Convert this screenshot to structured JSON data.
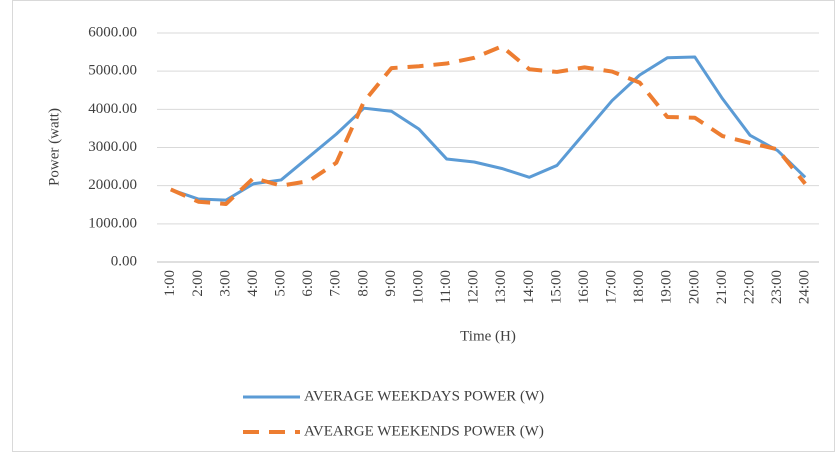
{
  "chart_data": {
    "type": "line",
    "x_label": "Time (H)",
    "y_label": "Power (watt)",
    "categories": [
      "1:00",
      "2:00",
      "3:00",
      "4:00",
      "5:00",
      "6:00",
      "7:00",
      "8:00",
      "9:00",
      "10:00",
      "11:00",
      "12:00",
      "13:00",
      "14:00",
      "15:00",
      "16:00",
      "17:00",
      "18:00",
      "19:00",
      "20:00",
      "21:00",
      "22:00",
      "23:00",
      "24:00"
    ],
    "series": [
      {
        "name": "AVERAGE WEEKDAYS POWER (W)",
        "color": "#5b9bd5",
        "dashed": false,
        "values": [
          1900,
          1650,
          1620,
          2050,
          2150,
          2750,
          3350,
          4030,
          3950,
          3480,
          2700,
          2620,
          2450,
          2220,
          2530,
          3380,
          4230,
          4900,
          5350,
          5370,
          4280,
          3320,
          2920,
          2220
        ]
      },
      {
        "name": "AVEARGE WEEKENDS POWER (W)",
        "color": "#ed7d31",
        "dashed": true,
        "values": [
          1900,
          1580,
          1520,
          2200,
          2000,
          2120,
          2600,
          4200,
          5080,
          5130,
          5200,
          5350,
          5650,
          5050,
          4980,
          5100,
          4990,
          4700,
          3800,
          3780,
          3300,
          3120,
          2950,
          2050
        ]
      }
    ],
    "ylim": [
      0,
      6000
    ],
    "yticks": [
      {
        "value": 0,
        "label": "0.00"
      },
      {
        "value": 1000,
        "label": "1000.00"
      },
      {
        "value": 2000,
        "label": "2000.00"
      },
      {
        "value": 3000,
        "label": "3000.00"
      },
      {
        "value": 4000,
        "label": "4000.00"
      },
      {
        "value": 5000,
        "label": "5000.00"
      },
      {
        "value": 6000,
        "label": "6000.00"
      }
    ],
    "grid": true,
    "legend": "bottom"
  }
}
